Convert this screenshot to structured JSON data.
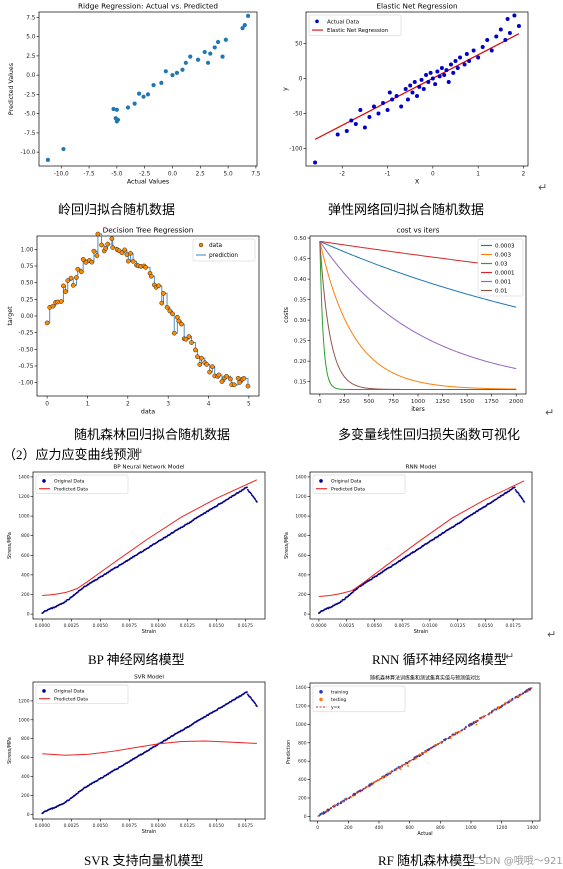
{
  "captions": {
    "ridge": "岭回归拟合随机数据",
    "elastic": "弹性网络回归拟合随机数据",
    "tree": "随机森林回归拟合随机数据",
    "cost": "多变量线性回归损失函数可视化",
    "section": "（2）应力应变曲线预测",
    "bp": "BP 神经网络模型",
    "rnn": "RNN 循环神经网络模型",
    "svr": "SVR 支持向量机模型",
    "rf": "RF 随机森林模型"
  },
  "return_mark": "↵",
  "watermark": "CSDN @哦哦～921",
  "chart_data": [
    {
      "id": "ridge",
      "type": "scatter",
      "title": "Ridge Regression: Actual vs. Predicted",
      "xlabel": "Actual Values",
      "ylabel": "Predicted Values",
      "xlim": [
        -12,
        7.6
      ],
      "ylim": [
        -11.8,
        8.2
      ],
      "xticks": [
        -10,
        -7.5,
        -5,
        -2.5,
        0,
        2.5,
        5,
        7.5
      ],
      "yticks": [
        -10,
        -7.5,
        -5,
        -2.5,
        0,
        2.5,
        5,
        7.5
      ],
      "color": "#1f77b4",
      "points": [
        [
          -11.2,
          -11.0
        ],
        [
          -9.8,
          -9.6
        ],
        [
          -5.3,
          -4.4
        ],
        [
          -5.1,
          -5.6
        ],
        [
          -5.0,
          -6.0
        ],
        [
          -4.9,
          -5.8
        ],
        [
          -5.0,
          -4.5
        ],
        [
          -4.0,
          -4.2
        ],
        [
          -3.4,
          -3.7
        ],
        [
          -3.0,
          -2.4
        ],
        [
          -2.6,
          -2.8
        ],
        [
          -2.2,
          -2.5
        ],
        [
          -1.7,
          -1.3
        ],
        [
          -1.0,
          -1.0
        ],
        [
          -0.6,
          0.5
        ],
        [
          0.0,
          0.0
        ],
        [
          0.4,
          0.3
        ],
        [
          0.9,
          0.7
        ],
        [
          1.2,
          1.6
        ],
        [
          1.6,
          2.4
        ],
        [
          2.3,
          2.0
        ],
        [
          2.9,
          3.0
        ],
        [
          3.2,
          1.6
        ],
        [
          3.4,
          2.8
        ],
        [
          3.8,
          3.6
        ],
        [
          4.1,
          4.3
        ],
        [
          4.5,
          2.4
        ],
        [
          4.8,
          4.6
        ],
        [
          6.3,
          6.1
        ],
        [
          6.5,
          6.5
        ],
        [
          6.8,
          7.7
        ]
      ]
    },
    {
      "id": "elastic",
      "type": "scatter+line",
      "title": "Elastic Net Regression",
      "xlabel": "X",
      "ylabel": "y",
      "xlim": [
        -2.8,
        2.1
      ],
      "ylim": [
        -125,
        95
      ],
      "xticks": [
        -2,
        -1,
        0,
        1,
        2
      ],
      "yticks": [
        -100,
        -50,
        0,
        50
      ],
      "legend": [
        "Actual Data",
        "Elastic Net Regression"
      ],
      "scatter_color": "#0000cc",
      "line_color": "#dd0000",
      "line": [
        [
          -2.6,
          -87
        ],
        [
          1.9,
          64
        ]
      ],
      "points": [
        [
          -2.6,
          -120
        ],
        [
          -2.1,
          -80
        ],
        [
          -1.9,
          -75
        ],
        [
          -1.8,
          -60
        ],
        [
          -1.7,
          -65
        ],
        [
          -1.6,
          -45
        ],
        [
          -1.5,
          -70
        ],
        [
          -1.4,
          -55
        ],
        [
          -1.3,
          -40
        ],
        [
          -1.2,
          -50
        ],
        [
          -1.1,
          -35
        ],
        [
          -1.0,
          -45
        ],
        [
          -0.95,
          -20
        ],
        [
          -0.9,
          -30
        ],
        [
          -0.8,
          -25
        ],
        [
          -0.7,
          -40
        ],
        [
          -0.6,
          -15
        ],
        [
          -0.55,
          -30
        ],
        [
          -0.5,
          -10
        ],
        [
          -0.45,
          -20
        ],
        [
          -0.4,
          -5
        ],
        [
          -0.35,
          -25
        ],
        [
          -0.3,
          -12
        ],
        [
          -0.25,
          -2
        ],
        [
          -0.2,
          -15
        ],
        [
          -0.15,
          5
        ],
        [
          -0.1,
          -5
        ],
        [
          -0.05,
          8
        ],
        [
          0.0,
          0
        ],
        [
          0.05,
          -8
        ],
        [
          0.1,
          10
        ],
        [
          0.15,
          3
        ],
        [
          0.2,
          15
        ],
        [
          0.25,
          5
        ],
        [
          0.3,
          12
        ],
        [
          0.35,
          -5
        ],
        [
          0.4,
          20
        ],
        [
          0.45,
          8
        ],
        [
          0.5,
          25
        ],
        [
          0.55,
          15
        ],
        [
          0.6,
          30
        ],
        [
          0.7,
          20
        ],
        [
          0.75,
          35
        ],
        [
          0.8,
          25
        ],
        [
          0.9,
          40
        ],
        [
          1.0,
          30
        ],
        [
          1.1,
          45
        ],
        [
          1.2,
          55
        ],
        [
          1.3,
          40
        ],
        [
          1.4,
          60
        ],
        [
          1.5,
          70
        ],
        [
          1.6,
          55
        ],
        [
          1.65,
          85
        ],
        [
          1.7,
          65
        ],
        [
          1.8,
          90
        ],
        [
          1.9,
          75
        ]
      ]
    },
    {
      "id": "tree",
      "type": "scatter+step",
      "title": "Decision Tree Regression",
      "xlabel": "data",
      "ylabel": "target",
      "xlim": [
        -0.25,
        5.25
      ],
      "ylim": [
        -1.2,
        1.2
      ],
      "xticks": [
        0,
        1,
        2,
        3,
        4,
        5
      ],
      "yticks": [
        -1.0,
        -0.75,
        -0.5,
        -0.25,
        0.0,
        0.25,
        0.5,
        0.75,
        1.0
      ],
      "legend": [
        "data",
        "prediction"
      ],
      "scatter_color": "#ff8c00",
      "line_color": "#4f8fc0"
    },
    {
      "id": "cost",
      "type": "line",
      "title": "cost vs iters",
      "xlabel": "iters",
      "ylabel": "costs",
      "xlim": [
        -100,
        2100
      ],
      "ylim": [
        0.12,
        0.505
      ],
      "xticks": [
        0,
        250,
        500,
        750,
        1000,
        1250,
        1500,
        1750,
        2000
      ],
      "yticks": [
        0.15,
        0.2,
        0.25,
        0.3,
        0.35,
        0.4,
        0.45,
        0.5
      ],
      "series": [
        {
          "name": "0.0003",
          "color": "#1f77b4",
          "rate": 0.0003
        },
        {
          "name": "0.003",
          "color": "#ff7f0e",
          "rate": 0.003
        },
        {
          "name": "0.03",
          "color": "#2ca02c",
          "rate": 0.03
        },
        {
          "name": "0.0001",
          "color": "#d62728",
          "rate": 0.0001
        },
        {
          "name": "0.001",
          "color": "#9467bd",
          "rate": 0.001
        },
        {
          "name": "0.01",
          "color": "#8c564b",
          "rate": 0.01
        }
      ]
    },
    {
      "id": "bp",
      "type": "scatter+line",
      "title": "BP Neural Network Model",
      "xlabel": "Strain",
      "ylabel": "Stress/MPa",
      "xlim": [
        -0.0008,
        0.0192
      ],
      "ylim": [
        -50,
        1450
      ],
      "xticks": [
        0.0,
        0.0025,
        0.005,
        0.0075,
        0.01,
        0.0125,
        0.015,
        0.0175
      ],
      "yticks": [
        0,
        200,
        400,
        600,
        800,
        1000,
        1200,
        1400
      ],
      "legend": [
        "Original Data",
        "Predicted Data"
      ],
      "predicted": [
        [
          0.0,
          190
        ],
        [
          0.001,
          200
        ],
        [
          0.002,
          220
        ],
        [
          0.003,
          260
        ],
        [
          0.004,
          340
        ],
        [
          0.006,
          510
        ],
        [
          0.009,
          760
        ],
        [
          0.012,
          990
        ],
        [
          0.015,
          1180
        ],
        [
          0.0185,
          1370
        ]
      ]
    },
    {
      "id": "rnn",
      "type": "scatter+line",
      "title": "RNN Model",
      "xlabel": "Strain",
      "ylabel": "Stress/MPa",
      "xlim": [
        -0.0008,
        0.0192
      ],
      "ylim": [
        -50,
        1450
      ],
      "xticks": [
        0.0,
        0.0025,
        0.005,
        0.0075,
        0.01,
        0.0125,
        0.015,
        0.0175
      ],
      "yticks": [
        0,
        200,
        400,
        600,
        800,
        1000,
        1200,
        1400
      ],
      "legend": [
        "Original Data",
        "Predicted Data"
      ],
      "predicted": [
        [
          0.0,
          180
        ],
        [
          0.001,
          190
        ],
        [
          0.002,
          210
        ],
        [
          0.003,
          240
        ],
        [
          0.004,
          320
        ],
        [
          0.006,
          490
        ],
        [
          0.009,
          740
        ],
        [
          0.012,
          980
        ],
        [
          0.015,
          1170
        ],
        [
          0.0185,
          1360
        ]
      ]
    },
    {
      "id": "svr",
      "type": "scatter+line",
      "title": "SVR Model",
      "xlabel": "Strain",
      "ylabel": "Stress/MPa",
      "xlim": [
        -0.0008,
        0.0192
      ],
      "ylim": [
        -50,
        1400
      ],
      "xticks": [
        0.0,
        0.0025,
        0.005,
        0.0075,
        0.01,
        0.0125,
        0.015,
        0.0175
      ],
      "yticks": [
        0,
        200,
        400,
        600,
        800,
        1000,
        1200
      ],
      "legend": [
        "Original Data",
        "Predicted Data"
      ],
      "predicted": [
        [
          0.0,
          640
        ],
        [
          0.002,
          625
        ],
        [
          0.004,
          635
        ],
        [
          0.006,
          665
        ],
        [
          0.008,
          705
        ],
        [
          0.01,
          745
        ],
        [
          0.012,
          770
        ],
        [
          0.014,
          775
        ],
        [
          0.016,
          765
        ],
        [
          0.0185,
          750
        ]
      ]
    },
    {
      "id": "rf",
      "type": "scatter+line",
      "title": "随机森林算法训练集和测试集真实值与预测值对比",
      "xlabel": "Actual",
      "ylabel": "Prediction",
      "xlim": [
        -50,
        1450
      ],
      "ylim": [
        -50,
        1450
      ],
      "xticks": [
        0,
        200,
        400,
        600,
        800,
        1000,
        1200,
        1400
      ],
      "yticks": [
        0,
        200,
        400,
        600,
        800,
        1000,
        1200,
        1400
      ],
      "legend": [
        "training",
        "testing",
        "y=x"
      ]
    }
  ]
}
